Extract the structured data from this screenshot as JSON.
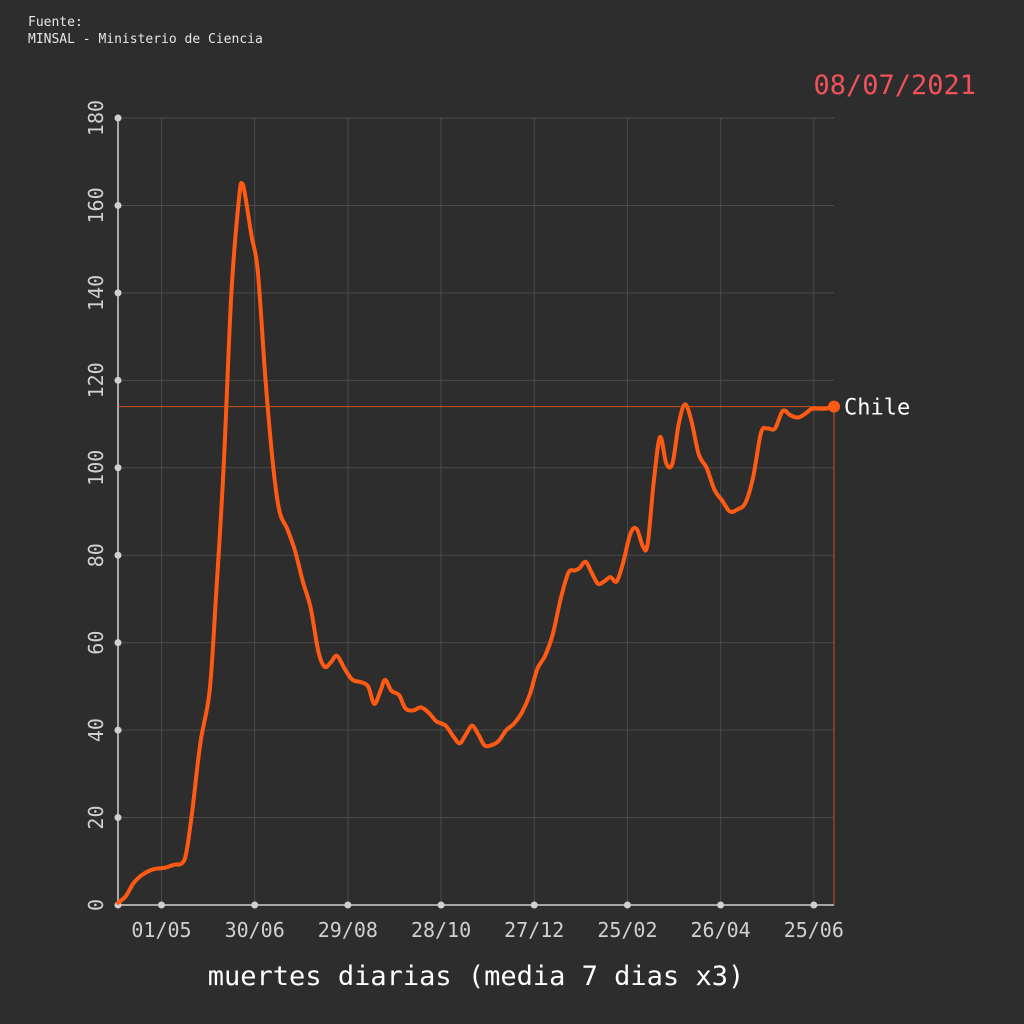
{
  "source": {
    "line1": "Fuente:",
    "line2": "MINSAL - Ministerio de Ciencia"
  },
  "date_label": "08/07/2021",
  "colors": {
    "background": "#2d2d2d",
    "line": "#ff5a14",
    "grid": "#4a4a4a",
    "axis": "#d0d0d0",
    "date": "#f0515a"
  },
  "chart_data": {
    "type": "line",
    "xlabel": "muertes diarias (media 7 dias x3)",
    "ylabel": "",
    "ylim": [
      0,
      180
    ],
    "yticks": [
      0,
      20,
      40,
      60,
      80,
      100,
      120,
      140,
      160,
      180
    ],
    "xlim": [
      "2020-04-03",
      "2021-07-08"
    ],
    "xticks": [
      {
        "date": "2020-05-01",
        "label": "01/05"
      },
      {
        "date": "2020-06-30",
        "label": "30/06"
      },
      {
        "date": "2020-08-29",
        "label": "29/08"
      },
      {
        "date": "2020-10-28",
        "label": "28/10"
      },
      {
        "date": "2020-12-27",
        "label": "27/12"
      },
      {
        "date": "2021-02-25",
        "label": "25/02"
      },
      {
        "date": "2021-04-26",
        "label": "26/04"
      },
      {
        "date": "2021-06-25",
        "label": "25/06"
      }
    ],
    "grid": true,
    "series": [
      {
        "name": "Chile",
        "last_value": 114,
        "points": [
          [
            "2020-04-03",
            0.5
          ],
          [
            "2020-04-08",
            2
          ],
          [
            "2020-04-13",
            5
          ],
          [
            "2020-04-19",
            7
          ],
          [
            "2020-04-26",
            8.2
          ],
          [
            "2020-05-03",
            8.5
          ],
          [
            "2020-05-09",
            9.2
          ],
          [
            "2020-05-14",
            9.5
          ],
          [
            "2020-05-17",
            12
          ],
          [
            "2020-05-21",
            22
          ],
          [
            "2020-05-26",
            37
          ],
          [
            "2020-06-01",
            49
          ],
          [
            "2020-06-05",
            70
          ],
          [
            "2020-06-10",
            100
          ],
          [
            "2020-06-15",
            140
          ],
          [
            "2020-06-20",
            162
          ],
          [
            "2020-06-22",
            165
          ],
          [
            "2020-06-24",
            162
          ],
          [
            "2020-06-28",
            153
          ],
          [
            "2020-07-02",
            145
          ],
          [
            "2020-07-07",
            120
          ],
          [
            "2020-07-12",
            100
          ],
          [
            "2020-07-16",
            90
          ],
          [
            "2020-07-21",
            86
          ],
          [
            "2020-07-26",
            81
          ],
          [
            "2020-07-31",
            74
          ],
          [
            "2020-08-05",
            68
          ],
          [
            "2020-08-10",
            58
          ],
          [
            "2020-08-14",
            54.5
          ],
          [
            "2020-08-18",
            55.5
          ],
          [
            "2020-08-22",
            57
          ],
          [
            "2020-08-27",
            54
          ],
          [
            "2020-09-01",
            51.5
          ],
          [
            "2020-09-06",
            51
          ],
          [
            "2020-09-11",
            50
          ],
          [
            "2020-09-15",
            46
          ],
          [
            "2020-09-19",
            49
          ],
          [
            "2020-09-22",
            51.5
          ],
          [
            "2020-09-26",
            49
          ],
          [
            "2020-10-01",
            48
          ],
          [
            "2020-10-05",
            45
          ],
          [
            "2020-10-10",
            44.5
          ],
          [
            "2020-10-15",
            45.2
          ],
          [
            "2020-10-20",
            44
          ],
          [
            "2020-10-25",
            42
          ],
          [
            "2020-10-31",
            41
          ],
          [
            "2020-11-05",
            38.5
          ],
          [
            "2020-11-09",
            37
          ],
          [
            "2020-11-13",
            39
          ],
          [
            "2020-11-17",
            41
          ],
          [
            "2020-11-21",
            39
          ],
          [
            "2020-11-25",
            36.5
          ],
          [
            "2020-11-29",
            36.5
          ],
          [
            "2020-12-04",
            37.5
          ],
          [
            "2020-12-09",
            40
          ],
          [
            "2020-12-14",
            41.5
          ],
          [
            "2020-12-19",
            44
          ],
          [
            "2020-12-24",
            48
          ],
          [
            "2020-12-29",
            54
          ],
          [
            "2021-01-03",
            57
          ],
          [
            "2021-01-08",
            62
          ],
          [
            "2021-01-13",
            70
          ],
          [
            "2021-01-18",
            76
          ],
          [
            "2021-01-22",
            76.5
          ],
          [
            "2021-01-25",
            77
          ],
          [
            "2021-01-29",
            78.5
          ],
          [
            "2021-02-02",
            76
          ],
          [
            "2021-02-06",
            73.5
          ],
          [
            "2021-02-10",
            74
          ],
          [
            "2021-02-14",
            75
          ],
          [
            "2021-02-18",
            74
          ],
          [
            "2021-02-22",
            78
          ],
          [
            "2021-02-27",
            85
          ],
          [
            "2021-03-03",
            86
          ],
          [
            "2021-03-07",
            82
          ],
          [
            "2021-03-10",
            82.5
          ],
          [
            "2021-03-14",
            97
          ],
          [
            "2021-03-18",
            107
          ],
          [
            "2021-03-22",
            101
          ],
          [
            "2021-03-26",
            101
          ],
          [
            "2021-03-30",
            110
          ],
          [
            "2021-04-03",
            114.5
          ],
          [
            "2021-04-07",
            111
          ],
          [
            "2021-04-12",
            103
          ],
          [
            "2021-04-17",
            100
          ],
          [
            "2021-04-22",
            95
          ],
          [
            "2021-04-27",
            92.5
          ],
          [
            "2021-05-02",
            90
          ],
          [
            "2021-05-07",
            90.5
          ],
          [
            "2021-05-12",
            92
          ],
          [
            "2021-05-17",
            98
          ],
          [
            "2021-05-22",
            108
          ],
          [
            "2021-05-26",
            109
          ],
          [
            "2021-05-31",
            109
          ],
          [
            "2021-06-05",
            113
          ],
          [
            "2021-06-10",
            112
          ],
          [
            "2021-06-15",
            111.5
          ],
          [
            "2021-06-20",
            112.5
          ],
          [
            "2021-06-24",
            113.5
          ],
          [
            "2021-07-02",
            113.5
          ],
          [
            "2021-07-08",
            114
          ]
        ]
      }
    ]
  }
}
